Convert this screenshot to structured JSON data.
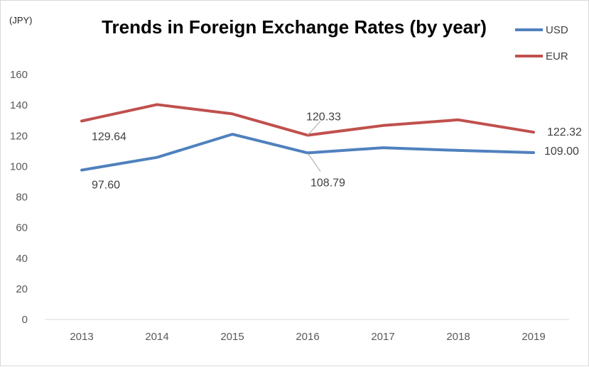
{
  "chart_data": {
    "type": "line",
    "title": "Trends in Foreign Exchange Rates (by year)",
    "ylabel": "(JPY)",
    "xlabel": "",
    "categories": [
      "2013",
      "2014",
      "2015",
      "2016",
      "2017",
      "2018",
      "2019"
    ],
    "ylim": [
      0,
      160
    ],
    "yticks": [
      0,
      20,
      40,
      60,
      80,
      100,
      120,
      140,
      160
    ],
    "grid": false,
    "legend_position": "top-right",
    "series": [
      {
        "name": "USD",
        "color": "#4f81bd",
        "values": [
          97.6,
          105.9,
          121.0,
          108.79,
          112.2,
          110.4,
          109.0
        ]
      },
      {
        "name": "EUR",
        "color": "#c0504d",
        "values": [
          129.64,
          140.4,
          134.3,
          120.33,
          126.7,
          130.4,
          122.32
        ]
      }
    ],
    "data_labels": [
      {
        "series": 0,
        "index": 0,
        "text": "97.60"
      },
      {
        "series": 0,
        "index": 3,
        "text": "108.79"
      },
      {
        "series": 0,
        "index": 6,
        "text": "109.00"
      },
      {
        "series": 1,
        "index": 0,
        "text": "129.64"
      },
      {
        "series": 1,
        "index": 3,
        "text": "120.33"
      },
      {
        "series": 1,
        "index": 6,
        "text": "122.32"
      }
    ]
  }
}
